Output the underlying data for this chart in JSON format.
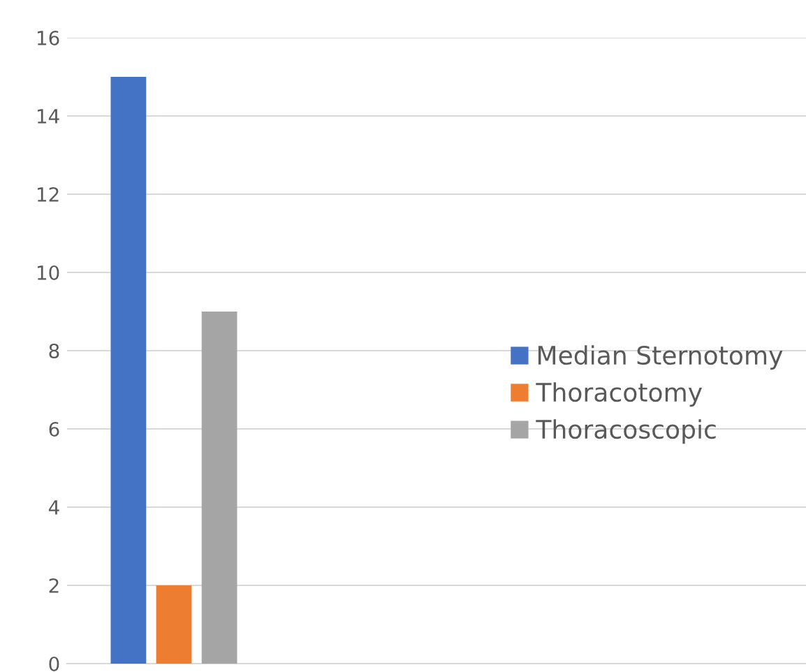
{
  "chart_data": {
    "type": "bar",
    "categories": [
      null
    ],
    "series": [
      {
        "name": "Median Sternotomy",
        "color": "#4472c4",
        "values": [
          15
        ]
      },
      {
        "name": "Thoracotomy",
        "color": "#ed7d31",
        "values": [
          2
        ]
      },
      {
        "name": "Thoracoscopic",
        "color": "#a5a5a5",
        "values": [
          9
        ]
      }
    ],
    "ylim": [
      0,
      16
    ],
    "yticks": [
      0,
      2,
      4,
      6,
      8,
      10,
      12,
      14,
      16
    ],
    "grid": "y",
    "legend": "right"
  }
}
